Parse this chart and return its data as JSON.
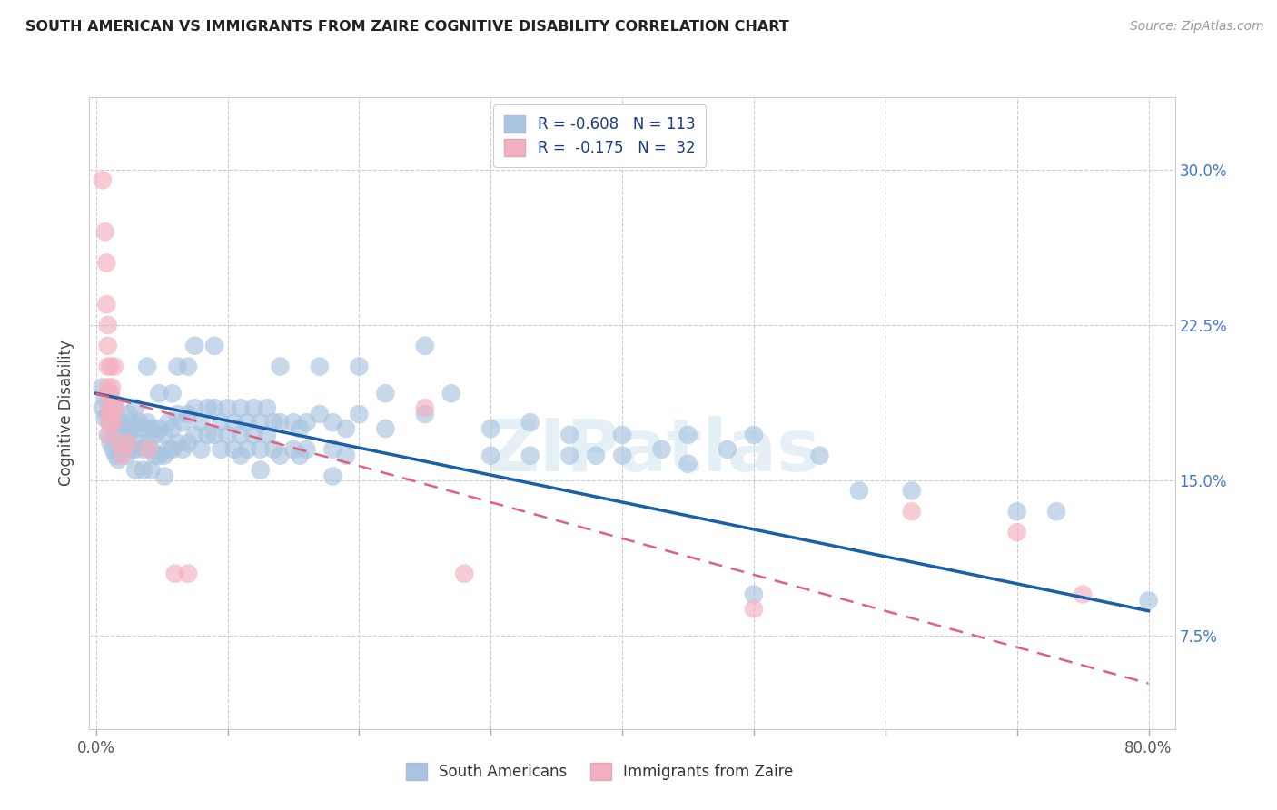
{
  "title": "SOUTH AMERICAN VS IMMIGRANTS FROM ZAIRE COGNITIVE DISABILITY CORRELATION CHART",
  "source": "Source: ZipAtlas.com",
  "ylabel": "Cognitive Disability",
  "ytick_labels": [
    "7.5%",
    "15.0%",
    "22.5%",
    "30.0%"
  ],
  "ytick_values": [
    0.075,
    0.15,
    0.225,
    0.3
  ],
  "xlim": [
    -0.005,
    0.82
  ],
  "ylim": [
    0.03,
    0.335
  ],
  "legend_label_1": "South Americans",
  "legend_label_2": "Immigrants from Zaire",
  "watermark": "ZIPatlas",
  "blue_color": "#a8c4e0",
  "pink_color": "#f4b0c0",
  "line_blue": "#1a5fa8",
  "line_pink": "#e06080",
  "blue_line_x": [
    0.0,
    0.8
  ],
  "blue_line_y": [
    0.192,
    0.087
  ],
  "pink_line_x": [
    0.0,
    0.8
  ],
  "pink_line_y": [
    0.192,
    0.052
  ],
  "blue_scatter": [
    [
      0.005,
      0.195
    ],
    [
      0.005,
      0.185
    ],
    [
      0.007,
      0.19
    ],
    [
      0.007,
      0.18
    ],
    [
      0.009,
      0.192
    ],
    [
      0.009,
      0.182
    ],
    [
      0.009,
      0.172
    ],
    [
      0.011,
      0.19
    ],
    [
      0.011,
      0.178
    ],
    [
      0.011,
      0.168
    ],
    [
      0.013,
      0.188
    ],
    [
      0.013,
      0.175
    ],
    [
      0.013,
      0.165
    ],
    [
      0.015,
      0.185
    ],
    [
      0.015,
      0.172
    ],
    [
      0.015,
      0.162
    ],
    [
      0.017,
      0.18
    ],
    [
      0.017,
      0.17
    ],
    [
      0.017,
      0.16
    ],
    [
      0.019,
      0.178
    ],
    [
      0.019,
      0.168
    ],
    [
      0.021,
      0.175
    ],
    [
      0.021,
      0.165
    ],
    [
      0.023,
      0.172
    ],
    [
      0.023,
      0.162
    ],
    [
      0.025,
      0.182
    ],
    [
      0.025,
      0.172
    ],
    [
      0.027,
      0.178
    ],
    [
      0.027,
      0.165
    ],
    [
      0.03,
      0.185
    ],
    [
      0.03,
      0.175
    ],
    [
      0.03,
      0.165
    ],
    [
      0.03,
      0.155
    ],
    [
      0.033,
      0.178
    ],
    [
      0.033,
      0.168
    ],
    [
      0.036,
      0.175
    ],
    [
      0.036,
      0.165
    ],
    [
      0.036,
      0.155
    ],
    [
      0.039,
      0.205
    ],
    [
      0.039,
      0.178
    ],
    [
      0.039,
      0.168
    ],
    [
      0.042,
      0.175
    ],
    [
      0.042,
      0.165
    ],
    [
      0.042,
      0.155
    ],
    [
      0.045,
      0.172
    ],
    [
      0.045,
      0.162
    ],
    [
      0.048,
      0.192
    ],
    [
      0.048,
      0.175
    ],
    [
      0.048,
      0.162
    ],
    [
      0.052,
      0.172
    ],
    [
      0.052,
      0.162
    ],
    [
      0.052,
      0.152
    ],
    [
      0.055,
      0.178
    ],
    [
      0.055,
      0.165
    ],
    [
      0.058,
      0.192
    ],
    [
      0.058,
      0.175
    ],
    [
      0.058,
      0.165
    ],
    [
      0.062,
      0.205
    ],
    [
      0.062,
      0.182
    ],
    [
      0.062,
      0.168
    ],
    [
      0.066,
      0.178
    ],
    [
      0.066,
      0.165
    ],
    [
      0.07,
      0.205
    ],
    [
      0.07,
      0.182
    ],
    [
      0.07,
      0.168
    ],
    [
      0.075,
      0.215
    ],
    [
      0.075,
      0.185
    ],
    [
      0.075,
      0.172
    ],
    [
      0.08,
      0.178
    ],
    [
      0.08,
      0.165
    ],
    [
      0.085,
      0.185
    ],
    [
      0.085,
      0.172
    ],
    [
      0.09,
      0.215
    ],
    [
      0.09,
      0.185
    ],
    [
      0.09,
      0.172
    ],
    [
      0.095,
      0.178
    ],
    [
      0.095,
      0.165
    ],
    [
      0.1,
      0.185
    ],
    [
      0.1,
      0.172
    ],
    [
      0.105,
      0.178
    ],
    [
      0.105,
      0.165
    ],
    [
      0.11,
      0.185
    ],
    [
      0.11,
      0.172
    ],
    [
      0.11,
      0.162
    ],
    [
      0.115,
      0.178
    ],
    [
      0.115,
      0.165
    ],
    [
      0.12,
      0.185
    ],
    [
      0.12,
      0.172
    ],
    [
      0.125,
      0.178
    ],
    [
      0.125,
      0.165
    ],
    [
      0.125,
      0.155
    ],
    [
      0.13,
      0.185
    ],
    [
      0.13,
      0.172
    ],
    [
      0.135,
      0.178
    ],
    [
      0.135,
      0.165
    ],
    [
      0.14,
      0.205
    ],
    [
      0.14,
      0.178
    ],
    [
      0.14,
      0.162
    ],
    [
      0.15,
      0.178
    ],
    [
      0.15,
      0.165
    ],
    [
      0.155,
      0.175
    ],
    [
      0.155,
      0.162
    ],
    [
      0.16,
      0.178
    ],
    [
      0.16,
      0.165
    ],
    [
      0.17,
      0.205
    ],
    [
      0.17,
      0.182
    ],
    [
      0.18,
      0.178
    ],
    [
      0.18,
      0.165
    ],
    [
      0.18,
      0.152
    ],
    [
      0.19,
      0.175
    ],
    [
      0.19,
      0.162
    ],
    [
      0.2,
      0.205
    ],
    [
      0.2,
      0.182
    ],
    [
      0.22,
      0.192
    ],
    [
      0.22,
      0.175
    ],
    [
      0.25,
      0.215
    ],
    [
      0.25,
      0.182
    ],
    [
      0.27,
      0.192
    ],
    [
      0.3,
      0.175
    ],
    [
      0.3,
      0.162
    ],
    [
      0.33,
      0.178
    ],
    [
      0.33,
      0.162
    ],
    [
      0.36,
      0.172
    ],
    [
      0.36,
      0.162
    ],
    [
      0.38,
      0.162
    ],
    [
      0.4,
      0.172
    ],
    [
      0.4,
      0.162
    ],
    [
      0.43,
      0.165
    ],
    [
      0.45,
      0.172
    ],
    [
      0.45,
      0.158
    ],
    [
      0.48,
      0.165
    ],
    [
      0.5,
      0.172
    ],
    [
      0.5,
      0.095
    ],
    [
      0.55,
      0.162
    ],
    [
      0.58,
      0.145
    ],
    [
      0.62,
      0.145
    ],
    [
      0.7,
      0.135
    ],
    [
      0.73,
      0.135
    ],
    [
      0.8,
      0.092
    ]
  ],
  "pink_scatter": [
    [
      0.005,
      0.295
    ],
    [
      0.007,
      0.27
    ],
    [
      0.008,
      0.255
    ],
    [
      0.008,
      0.235
    ],
    [
      0.009,
      0.225
    ],
    [
      0.009,
      0.215
    ],
    [
      0.009,
      0.205
    ],
    [
      0.009,
      0.195
    ],
    [
      0.01,
      0.192
    ],
    [
      0.01,
      0.185
    ],
    [
      0.01,
      0.178
    ],
    [
      0.01,
      0.172
    ],
    [
      0.011,
      0.205
    ],
    [
      0.011,
      0.192
    ],
    [
      0.011,
      0.182
    ],
    [
      0.012,
      0.195
    ],
    [
      0.012,
      0.185
    ],
    [
      0.013,
      0.178
    ],
    [
      0.014,
      0.205
    ],
    [
      0.015,
      0.185
    ],
    [
      0.018,
      0.168
    ],
    [
      0.02,
      0.162
    ],
    [
      0.025,
      0.168
    ],
    [
      0.04,
      0.165
    ],
    [
      0.06,
      0.105
    ],
    [
      0.07,
      0.105
    ],
    [
      0.25,
      0.185
    ],
    [
      0.28,
      0.105
    ],
    [
      0.5,
      0.088
    ],
    [
      0.62,
      0.135
    ],
    [
      0.7,
      0.125
    ],
    [
      0.75,
      0.095
    ]
  ]
}
